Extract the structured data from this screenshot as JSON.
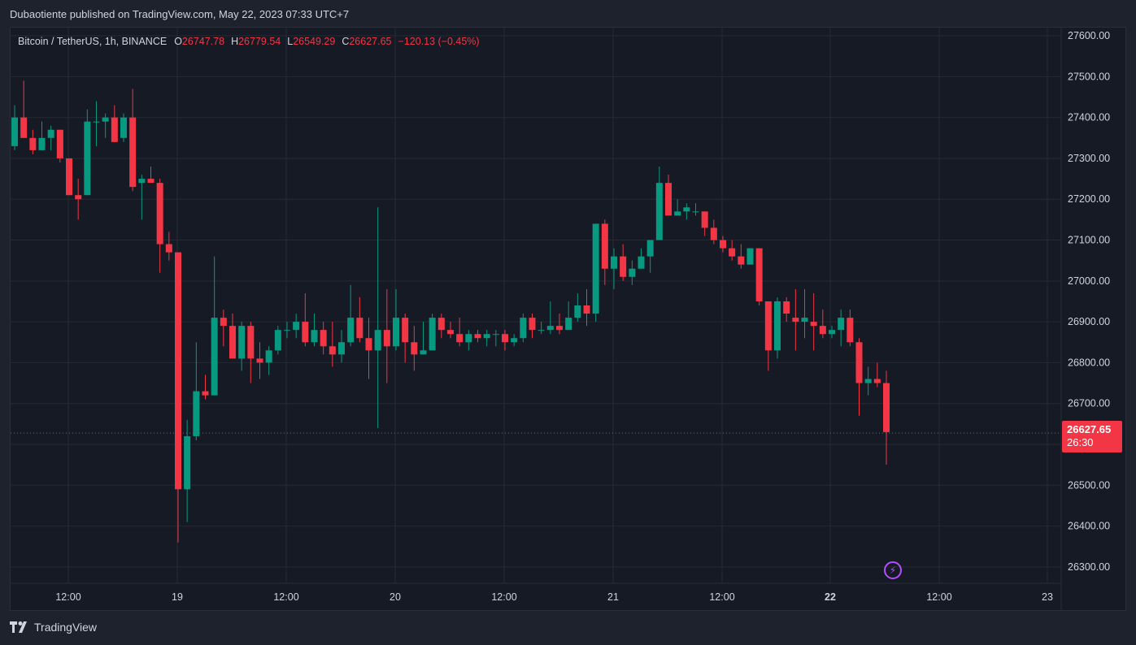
{
  "caption": "Dubaotiente published on TradingView.com, May 22, 2023 07:33 UTC+7",
  "legend": {
    "symbol": "Bitcoin / TetherUS, 1h, BINANCE",
    "o_label": "O",
    "o_value": "26747.78",
    "h_label": "H",
    "h_value": "26779.54",
    "l_label": "L",
    "l_value": "26549.29",
    "c_label": "C",
    "c_value": "26627.65",
    "change": "−120.13 (−0.45%)"
  },
  "price_tag": {
    "price": "26627.65",
    "countdown": "26:30"
  },
  "footer": {
    "brand": "TradingView"
  },
  "colors": {
    "up": "#089981",
    "down": "#f23645",
    "grid": "#252932",
    "axis_text": "#d1d4dc"
  },
  "icons": {
    "alert": "lightning-icon",
    "logo": "tradingview-logo-icon"
  },
  "chart_data": {
    "type": "candlestick",
    "title": "Bitcoin / TetherUS, 1h, BINANCE",
    "x_ticks": [
      {
        "label": "12:00",
        "x": 84
      },
      {
        "label": "19",
        "x": 218
      },
      {
        "label": "12:00",
        "x": 352
      },
      {
        "label": "20",
        "x": 486
      },
      {
        "label": "12:00",
        "x": 620
      },
      {
        "label": "21",
        "x": 754
      },
      {
        "label": "12:00",
        "x": 888
      },
      {
        "label": "22",
        "x": 1021,
        "bold": true
      },
      {
        "label": "12:00",
        "x": 1155
      },
      {
        "label": "23",
        "x": 1288
      }
    ],
    "y_ticks": [
      27600,
      27500,
      27400,
      27300,
      27200,
      27100,
      27000,
      26900,
      26800,
      26700,
      26600,
      26500,
      26400,
      26300
    ],
    "ylim": [
      26260,
      27620
    ],
    "last_price": 26627.65,
    "candles": [
      [
        27330,
        27430,
        27320,
        27400
      ],
      [
        27400,
        27490,
        27350,
        27350
      ],
      [
        27350,
        27370,
        27310,
        27320
      ],
      [
        27320,
        27390,
        27320,
        27350
      ],
      [
        27350,
        27380,
        27320,
        27370
      ],
      [
        27370,
        27370,
        27290,
        27300
      ],
      [
        27300,
        27300,
        27210,
        27210
      ],
      [
        27210,
        27250,
        27150,
        27200
      ],
      [
        27210,
        27420,
        27210,
        27390
      ],
      [
        27390,
        27440,
        27330,
        27390
      ],
      [
        27390,
        27410,
        27350,
        27400
      ],
      [
        27400,
        27430,
        27340,
        27340
      ],
      [
        27350,
        27410,
        27340,
        27400
      ],
      [
        27400,
        27470,
        27220,
        27230
      ],
      [
        27240,
        27260,
        27150,
        27250
      ],
      [
        27250,
        27280,
        27240,
        27240
      ],
      [
        27240,
        27250,
        27020,
        27090
      ],
      [
        27090,
        27120,
        27050,
        27070
      ],
      [
        27070,
        27070,
        26360,
        26490
      ],
      [
        26490,
        26660,
        26410,
        26620
      ],
      [
        26620,
        26850,
        26610,
        26730
      ],
      [
        26730,
        26770,
        26710,
        26720
      ],
      [
        26720,
        27060,
        26720,
        26910
      ],
      [
        26910,
        26930,
        26840,
        26890
      ],
      [
        26890,
        26920,
        26810,
        26810
      ],
      [
        26810,
        26900,
        26780,
        26890
      ],
      [
        26890,
        26900,
        26750,
        26810
      ],
      [
        26810,
        26850,
        26760,
        26800
      ],
      [
        26800,
        26840,
        26770,
        26830
      ],
      [
        26830,
        26890,
        26820,
        26880
      ],
      [
        26880,
        26900,
        26860,
        26880
      ],
      [
        26880,
        26920,
        26860,
        26900
      ],
      [
        26900,
        26970,
        26840,
        26850
      ],
      [
        26850,
        26920,
        26840,
        26880
      ],
      [
        26880,
        26900,
        26820,
        26840
      ],
      [
        26840,
        26900,
        26790,
        26820
      ],
      [
        26820,
        26880,
        26800,
        26850
      ],
      [
        26850,
        26990,
        26840,
        26910
      ],
      [
        26910,
        26960,
        26850,
        26860
      ],
      [
        26860,
        26910,
        26760,
        26830
      ],
      [
        26830,
        27180,
        26640,
        26880
      ],
      [
        26880,
        26980,
        26750,
        26840
      ],
      [
        26840,
        26980,
        26830,
        26910
      ],
      [
        26910,
        26920,
        26800,
        26850
      ],
      [
        26850,
        26890,
        26780,
        26820
      ],
      [
        26820,
        26900,
        26820,
        26830
      ],
      [
        26830,
        26920,
        26830,
        26910
      ],
      [
        26910,
        26920,
        26860,
        26880
      ],
      [
        26880,
        26900,
        26860,
        26870
      ],
      [
        26870,
        26910,
        26840,
        26850
      ],
      [
        26850,
        26880,
        26830,
        26870
      ],
      [
        26870,
        26880,
        26850,
        26860
      ],
      [
        26860,
        26880,
        26840,
        26870
      ],
      [
        26870,
        26880,
        26840,
        26870
      ],
      [
        26870,
        26880,
        26830,
        26850
      ],
      [
        26850,
        26870,
        26840,
        26860
      ],
      [
        26860,
        26920,
        26850,
        26910
      ],
      [
        26910,
        26920,
        26860,
        26880
      ],
      [
        26880,
        26900,
        26870,
        26880
      ],
      [
        26880,
        26950,
        26870,
        26890
      ],
      [
        26890,
        26920,
        26870,
        26880
      ],
      [
        26880,
        26950,
        26880,
        26910
      ],
      [
        26910,
        26970,
        26900,
        26940
      ],
      [
        26940,
        26980,
        26890,
        26920
      ],
      [
        26920,
        27140,
        26900,
        27140
      ],
      [
        27140,
        27150,
        26990,
        27030
      ],
      [
        27030,
        27080,
        26980,
        27060
      ],
      [
        27060,
        27090,
        27000,
        27010
      ],
      [
        27010,
        27050,
        26990,
        27030
      ],
      [
        27030,
        27080,
        27030,
        27060
      ],
      [
        27060,
        27100,
        27020,
        27100
      ],
      [
        27100,
        27280,
        27100,
        27240
      ],
      [
        27240,
        27260,
        27160,
        27160
      ],
      [
        27160,
        27200,
        27160,
        27170
      ],
      [
        27170,
        27190,
        27150,
        27180
      ],
      [
        27170,
        27190,
        27160,
        27170
      ],
      [
        27170,
        27170,
        27110,
        27130
      ],
      [
        27130,
        27150,
        27090,
        27100
      ],
      [
        27100,
        27110,
        27070,
        27080
      ],
      [
        27080,
        27100,
        27050,
        27060
      ],
      [
        27060,
        27090,
        27030,
        27040
      ],
      [
        27040,
        27080,
        27040,
        27080
      ],
      [
        27080,
        27080,
        26940,
        26950
      ],
      [
        26950,
        26950,
        26780,
        26830
      ],
      [
        26830,
        26960,
        26810,
        26950
      ],
      [
        26950,
        26960,
        26900,
        26920
      ],
      [
        26910,
        26980,
        26830,
        26900
      ],
      [
        26900,
        26980,
        26860,
        26910
      ],
      [
        26900,
        26970,
        26830,
        26890
      ],
      [
        26890,
        26930,
        26860,
        26870
      ],
      [
        26870,
        26890,
        26860,
        26880
      ],
      [
        26880,
        26930,
        26840,
        26910
      ],
      [
        26910,
        26930,
        26840,
        26850
      ],
      [
        26850,
        26860,
        26670,
        26750
      ],
      [
        26750,
        26790,
        26720,
        26760
      ],
      [
        26760,
        26800,
        26740,
        26750
      ],
      [
        26750,
        26780,
        26550,
        26630
      ]
    ]
  }
}
